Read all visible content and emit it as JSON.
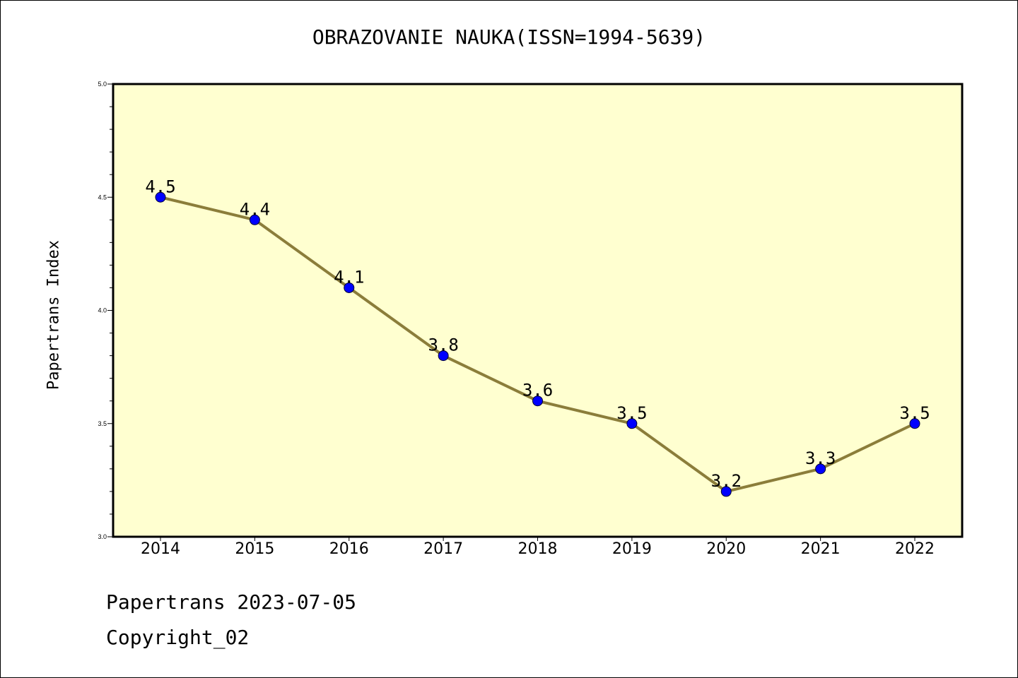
{
  "title": "OBRAZOVANIE NAUKA(ISSN=1994-5639)",
  "footer": {
    "line1": "Papertrans 2023-07-05",
    "line2": "Copyright_02"
  },
  "colors": {
    "plot_background": "#FFFFD0",
    "line": "#8B7D3A",
    "marker": "#0000FF"
  },
  "chart_data": {
    "type": "line",
    "title": "OBRAZOVANIE NAUKA(ISSN=1994-5639)",
    "xlabel": "",
    "ylabel": "Papertrans Index",
    "categories": [
      "2014",
      "2015",
      "2016",
      "2017",
      "2018",
      "2019",
      "2020",
      "2021",
      "2022"
    ],
    "values": [
      4.5,
      4.4,
      4.1,
      3.8,
      3.6,
      3.5,
      3.2,
      3.3,
      3.5
    ],
    "data_labels": [
      "4.5",
      "4.4",
      "4.1",
      "3.8",
      "3.6",
      "3.5",
      "3.2",
      "3.3",
      "3.5"
    ],
    "ylim": [
      3.0,
      5.0
    ],
    "yticks": [
      "3.0",
      "3.5",
      "4.0",
      "4.5",
      "5.0"
    ],
    "grid": false,
    "legend": "none"
  }
}
